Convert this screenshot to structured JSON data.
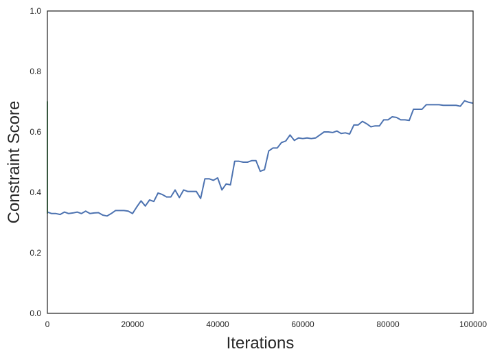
{
  "chart_data": {
    "type": "line",
    "title": "",
    "xlabel": "Iterations",
    "ylabel": "Constraint Score",
    "xlim": [
      0,
      100000
    ],
    "ylim": [
      0.0,
      1.0
    ],
    "xticks": [
      0,
      20000,
      40000,
      60000,
      80000,
      100000
    ],
    "yticks": [
      0.0,
      0.2,
      0.4,
      0.6,
      0.8,
      1.0
    ],
    "xtick_labels": [
      "0",
      "20000",
      "40000",
      "60000",
      "80000",
      "100000"
    ],
    "ytick_labels": [
      "0.0",
      "0.2",
      "0.4",
      "0.6",
      "0.8",
      "1.0"
    ],
    "grid": false,
    "colors": {
      "series_main": "#4c72b0",
      "series_secondary": "#55a868",
      "axes_edge": "#262626"
    },
    "series": [
      {
        "color": "#4c72b0",
        "x": [
          0,
          1000,
          2000,
          3000,
          4000,
          5000,
          6000,
          7000,
          8000,
          9000,
          10000,
          11000,
          12000,
          13000,
          14000,
          15000,
          16000,
          17000,
          18000,
          19000,
          20000,
          21000,
          22000,
          23000,
          24000,
          25000,
          26000,
          27000,
          28000,
          29000,
          30000,
          31000,
          32000,
          33000,
          34000,
          35000,
          36000,
          37000,
          38000,
          39000,
          40000,
          41000,
          42000,
          43000,
          44000,
          45000,
          46000,
          47000,
          48000,
          49000,
          50000,
          51000,
          52000,
          53000,
          54000,
          55000,
          56000,
          57000,
          58000,
          59000,
          60000,
          61000,
          62000,
          63000,
          64000,
          65000,
          66000,
          67000,
          68000,
          69000,
          70000,
          71000,
          72000,
          73000,
          74000,
          75000,
          76000,
          77000,
          78000,
          79000,
          80000,
          81000,
          82000,
          83000,
          84000,
          85000,
          86000,
          87000,
          88000,
          89000,
          90000,
          91000,
          92000,
          93000,
          94000,
          95000,
          96000,
          97000,
          98000,
          99000,
          100000
        ],
        "y": [
          0.335,
          0.33,
          0.33,
          0.327,
          0.335,
          0.33,
          0.332,
          0.335,
          0.33,
          0.338,
          0.33,
          0.332,
          0.333,
          0.325,
          0.322,
          0.33,
          0.34,
          0.34,
          0.34,
          0.338,
          0.33,
          0.352,
          0.372,
          0.355,
          0.375,
          0.37,
          0.398,
          0.393,
          0.385,
          0.385,
          0.408,
          0.383,
          0.408,
          0.403,
          0.403,
          0.403,
          0.38,
          0.445,
          0.445,
          0.44,
          0.448,
          0.408,
          0.428,
          0.425,
          0.503,
          0.503,
          0.5,
          0.5,
          0.505,
          0.505,
          0.47,
          0.475,
          0.537,
          0.547,
          0.547,
          0.565,
          0.57,
          0.59,
          0.572,
          0.58,
          0.578,
          0.58,
          0.578,
          0.58,
          0.59,
          0.6,
          0.6,
          0.598,
          0.603,
          0.595,
          0.597,
          0.593,
          0.623,
          0.623,
          0.635,
          0.627,
          0.617,
          0.62,
          0.62,
          0.64,
          0.64,
          0.65,
          0.648,
          0.64,
          0.64,
          0.638,
          0.675,
          0.675,
          0.675,
          0.69,
          0.69,
          0.69,
          0.69,
          0.688,
          0.688,
          0.688,
          0.688,
          0.685,
          0.703,
          0.698,
          0.695
        ]
      },
      {
        "color": "#55a868",
        "x": [
          0,
          0,
          0,
          0,
          0,
          0,
          0,
          0
        ],
        "y": [
          0.33,
          0.7,
          0.4,
          0.55,
          0.35,
          0.65,
          0.45,
          0.5
        ]
      }
    ]
  }
}
